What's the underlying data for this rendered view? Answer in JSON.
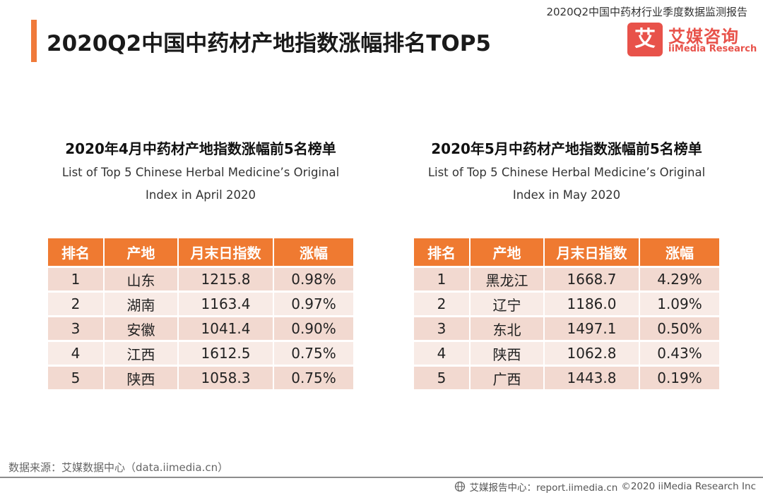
{
  "header": {
    "report_title": "2020Q2中国中药材行业季度数据监测报告",
    "page_title": "2020Q2中国中药材产地指数涨幅排名TOP5"
  },
  "logo": {
    "mark": "艾",
    "name_cn": "艾媒咨询",
    "name_en": "iiMedia Research",
    "color": "#e8524a"
  },
  "colors": {
    "accent": "#f07a3a",
    "header_bg": "#ef7a31",
    "row_odd": "#f2d9d0",
    "row_even": "#f8ebe6"
  },
  "tables": [
    {
      "title_cn": "2020年4月中药材产地指数涨幅前5名榜单",
      "title_en": "List of Top 5 Chinese Herbal Medicine’s Original Index in April 2020",
      "columns": [
        "排名",
        "产地",
        "月末日指数",
        "涨幅"
      ],
      "rows": [
        [
          "1",
          "山东",
          "1215.8",
          "0.98%"
        ],
        [
          "2",
          "湖南",
          "1163.4",
          "0.97%"
        ],
        [
          "3",
          "安徽",
          "1041.4",
          "0.90%"
        ],
        [
          "4",
          "江西",
          "1612.5",
          "0.75%"
        ],
        [
          "5",
          "陕西",
          "1058.3",
          "0.75%"
        ]
      ]
    },
    {
      "title_cn": "2020年5月中药材产地指数涨幅前5名榜单",
      "title_en": "List of Top 5 Chinese Herbal Medicine’s Original Index in May 2020",
      "columns": [
        "排名",
        "产地",
        "月末日指数",
        "涨幅"
      ],
      "rows": [
        [
          "1",
          "黑龙江",
          "1668.7",
          "4.29%"
        ],
        [
          "2",
          "辽宁",
          "1186.0",
          "1.09%"
        ],
        [
          "3",
          "东北",
          "1497.1",
          "0.50%"
        ],
        [
          "4",
          "陕西",
          "1062.8",
          "0.43%"
        ],
        [
          "5",
          "广西",
          "1443.8",
          "0.19%"
        ]
      ]
    }
  ],
  "footer": {
    "source": "数据来源：艾媒数据中心（data.iimedia.cn）",
    "site_label": "艾媒报告中心：report.iimedia.cn",
    "copyright": "©2020  iiMedia Research  Inc",
    "globe_icon": "globe-icon"
  }
}
